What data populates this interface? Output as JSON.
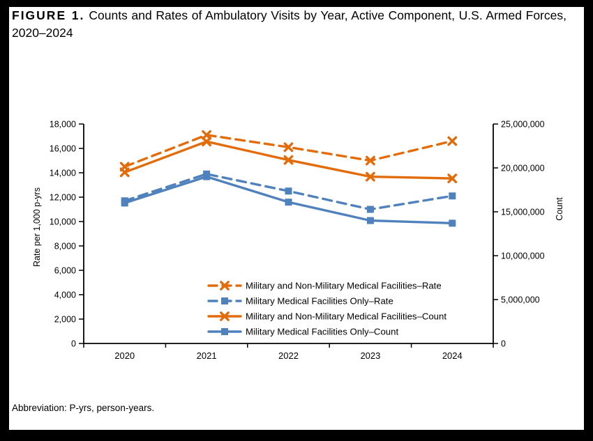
{
  "figure": {
    "label": "FIGURE 1.",
    "title": "Counts and Rates of Ambulatory Visits by Year, Active Component, U.S. Armed Forces, 2020–2024",
    "footnote": "Abbreviation: P-yrs, person-years."
  },
  "colors": {
    "orange": "#E36C0A",
    "blue": "#4F81BD",
    "axis": "#000000",
    "background": "#FFFFFF",
    "frame": "#000000"
  },
  "chart_data": {
    "type": "line",
    "categories": [
      "2020",
      "2021",
      "2022",
      "2023",
      "2024"
    ],
    "left_axis": {
      "label": "Rate per 1,000 p-yrs",
      "min": 0,
      "max": 18000,
      "step": 2000
    },
    "right_axis": {
      "label": "Count",
      "min": 0,
      "max": 25000000,
      "step": 5000000
    },
    "grid": "off",
    "legend_position": "inside-bottom-center",
    "series": [
      {
        "name": "Military and Non-Military Medical Facilities–Rate",
        "axis": "left",
        "color": "#E36C0A",
        "dash": true,
        "marker": "x",
        "values": [
          14500,
          17100,
          16100,
          15000,
          16600
        ]
      },
      {
        "name": "Military Medical Facilities Only–Rate",
        "axis": "left",
        "color": "#4F81BD",
        "dash": true,
        "marker": "square",
        "values": [
          11700,
          13900,
          12500,
          11000,
          12100
        ]
      },
      {
        "name": "Military and Non-Military Medical Facilities–Count",
        "axis": "right",
        "color": "#E36C0A",
        "dash": false,
        "marker": "x",
        "values": [
          19500000,
          23000000,
          20900000,
          19000000,
          18800000
        ]
      },
      {
        "name": "Military Medical Facilities Only–Count",
        "axis": "right",
        "color": "#4F81BD",
        "dash": false,
        "marker": "square",
        "values": [
          16000000,
          19000000,
          16100000,
          14000000,
          13700000
        ]
      }
    ]
  }
}
